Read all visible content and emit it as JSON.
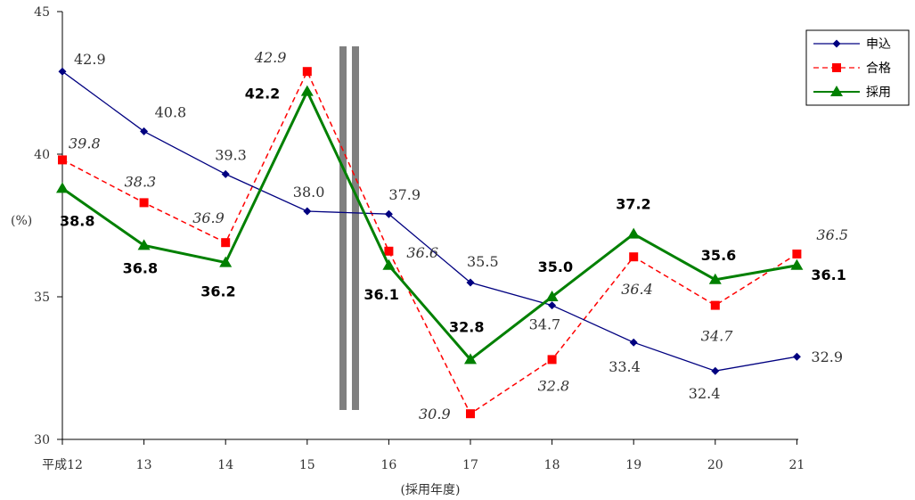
{
  "chart_data": {
    "type": "line",
    "categories": [
      "平成12",
      "13",
      "14",
      "15",
      "16",
      "17",
      "18",
      "19",
      "20",
      "21"
    ],
    "xlabel": "(採用年度)",
    "ylabel": "(%)",
    "ylim": [
      30,
      45
    ],
    "yticks": [
      "30",
      "35",
      "40",
      "45"
    ],
    "grid": false,
    "legend_position": "top-right",
    "break_between": [
      "15",
      "16"
    ],
    "series": [
      {
        "name": "申込",
        "color": "#000080",
        "marker": "diamond",
        "line_style": "solid",
        "values": [
          42.9,
          40.8,
          39.3,
          38.0,
          37.9,
          35.5,
          34.7,
          33.4,
          32.4,
          32.9
        ],
        "labels": [
          "42.9",
          "40.8",
          "39.3",
          "38.0",
          "37.9",
          "35.5",
          "34.7",
          "33.4",
          "32.4",
          "32.9"
        ]
      },
      {
        "name": "合格",
        "color": "#ff0000",
        "marker": "square",
        "line_style": "dashed",
        "values": [
          39.8,
          38.3,
          36.9,
          42.9,
          36.6,
          30.9,
          32.8,
          36.4,
          34.7,
          36.5
        ],
        "labels": [
          "39.8",
          "38.3",
          "36.9",
          "42.9",
          "36.6",
          "30.9",
          "32.8",
          "36.4",
          "34.7",
          "36.5"
        ]
      },
      {
        "name": "採用",
        "color": "#008000",
        "marker": "triangle",
        "line_style": "solid",
        "values": [
          38.8,
          36.8,
          36.2,
          42.2,
          36.1,
          32.8,
          35.0,
          37.2,
          35.6,
          36.1
        ],
        "labels": [
          "38.8",
          "36.8",
          "36.2",
          "42.2",
          "36.1",
          "32.8",
          "35.0",
          "37.2",
          "35.6",
          "36.1"
        ]
      }
    ]
  }
}
